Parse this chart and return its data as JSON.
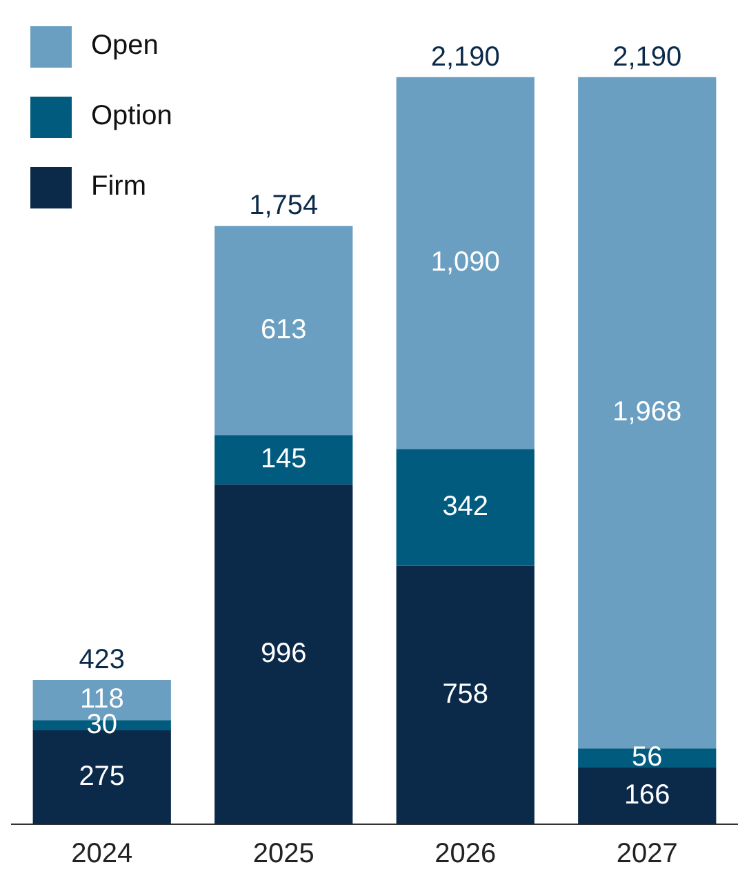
{
  "chart_data": {
    "type": "bar",
    "stacked": true,
    "categories": [
      "2024",
      "2025",
      "2026",
      "2027"
    ],
    "series": [
      {
        "name": "Firm",
        "color": "#0b2a4a",
        "values": [
          275,
          996,
          758,
          166
        ],
        "value_labels": [
          "275",
          "996",
          "758",
          "166"
        ]
      },
      {
        "name": "Option",
        "color": "#005b7f",
        "values": [
          30,
          145,
          342,
          56
        ],
        "value_labels": [
          "30",
          "145",
          "342",
          "56"
        ]
      },
      {
        "name": "Open",
        "color": "#6a9fc1",
        "values": [
          118,
          613,
          1090,
          1968
        ],
        "value_labels": [
          "118",
          "613",
          "1,090",
          "1,968"
        ]
      }
    ],
    "totals": [
      "423",
      "1,754",
      "2,190",
      "2,190"
    ],
    "legend": "top left",
    "grid": false
  }
}
